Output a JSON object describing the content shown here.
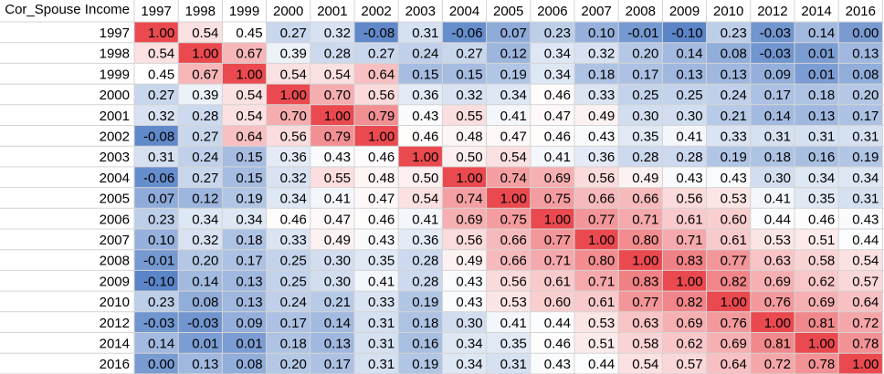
{
  "chart_data": {
    "type": "heatmap",
    "title": "Cor_Spouse Income",
    "labels": [
      "1997",
      "1998",
      "1999",
      "2000",
      "2001",
      "2002",
      "2003",
      "2004",
      "2005",
      "2006",
      "2007",
      "2008",
      "2009",
      "2010",
      "2012",
      "2014",
      "2016"
    ],
    "values": [
      [
        1.0,
        0.54,
        0.45,
        0.27,
        0.32,
        -0.08,
        0.31,
        -0.06,
        0.07,
        0.23,
        0.1,
        -0.01,
        -0.1,
        0.23,
        -0.03,
        0.14,
        0.0
      ],
      [
        0.54,
        1.0,
        0.67,
        0.39,
        0.28,
        0.27,
        0.24,
        0.27,
        0.12,
        0.34,
        0.32,
        0.2,
        0.14,
        0.08,
        -0.03,
        0.01,
        0.13
      ],
      [
        0.45,
        0.67,
        1.0,
        0.54,
        0.54,
        0.64,
        0.15,
        0.15,
        0.19,
        0.34,
        0.18,
        0.17,
        0.13,
        0.13,
        0.09,
        0.01,
        0.08
      ],
      [
        0.27,
        0.39,
        0.54,
        1.0,
        0.7,
        0.56,
        0.36,
        0.32,
        0.34,
        0.46,
        0.33,
        0.25,
        0.25,
        0.24,
        0.17,
        0.18,
        0.2
      ],
      [
        0.32,
        0.28,
        0.54,
        0.7,
        1.0,
        0.79,
        0.43,
        0.55,
        0.41,
        0.47,
        0.49,
        0.3,
        0.3,
        0.21,
        0.14,
        0.13,
        0.17
      ],
      [
        -0.08,
        0.27,
        0.64,
        0.56,
        0.79,
        1.0,
        0.46,
        0.48,
        0.47,
        0.46,
        0.43,
        0.35,
        0.41,
        0.33,
        0.31,
        0.31,
        0.31
      ],
      [
        0.31,
        0.24,
        0.15,
        0.36,
        0.43,
        0.46,
        1.0,
        0.5,
        0.54,
        0.41,
        0.36,
        0.28,
        0.28,
        0.19,
        0.18,
        0.16,
        0.19
      ],
      [
        -0.06,
        0.27,
        0.15,
        0.32,
        0.55,
        0.48,
        0.5,
        1.0,
        0.74,
        0.69,
        0.56,
        0.49,
        0.43,
        0.43,
        0.3,
        0.34,
        0.34
      ],
      [
        0.07,
        0.12,
        0.19,
        0.34,
        0.41,
        0.47,
        0.54,
        0.74,
        1.0,
        0.75,
        0.66,
        0.66,
        0.56,
        0.53,
        0.41,
        0.35,
        0.31
      ],
      [
        0.23,
        0.34,
        0.34,
        0.46,
        0.47,
        0.46,
        0.41,
        0.69,
        0.75,
        1.0,
        0.77,
        0.71,
        0.61,
        0.6,
        0.44,
        0.46,
        0.43
      ],
      [
        0.1,
        0.32,
        0.18,
        0.33,
        0.49,
        0.43,
        0.36,
        0.56,
        0.66,
        0.77,
        1.0,
        0.8,
        0.71,
        0.61,
        0.53,
        0.51,
        0.44
      ],
      [
        -0.01,
        0.2,
        0.17,
        0.25,
        0.3,
        0.35,
        0.28,
        0.49,
        0.66,
        0.71,
        0.8,
        1.0,
        0.83,
        0.77,
        0.63,
        0.58,
        0.54
      ],
      [
        -0.1,
        0.14,
        0.13,
        0.25,
        0.3,
        0.41,
        0.28,
        0.43,
        0.56,
        0.61,
        0.71,
        0.83,
        1.0,
        0.82,
        0.69,
        0.62,
        0.57
      ],
      [
        0.23,
        0.08,
        0.13,
        0.24,
        0.21,
        0.33,
        0.19,
        0.43,
        0.53,
        0.6,
        0.61,
        0.77,
        0.82,
        1.0,
        0.76,
        0.69,
        0.64
      ],
      [
        -0.03,
        -0.03,
        0.09,
        0.17,
        0.14,
        0.31,
        0.18,
        0.3,
        0.41,
        0.44,
        0.53,
        0.63,
        0.69,
        0.76,
        1.0,
        0.81,
        0.72
      ],
      [
        0.14,
        0.01,
        0.01,
        0.18,
        0.13,
        0.31,
        0.16,
        0.34,
        0.35,
        0.46,
        0.51,
        0.58,
        0.62,
        0.69,
        0.81,
        1.0,
        0.78
      ],
      [
        0.0,
        0.13,
        0.08,
        0.2,
        0.17,
        0.31,
        0.19,
        0.34,
        0.31,
        0.43,
        0.44,
        0.54,
        0.57,
        0.64,
        0.72,
        0.78,
        1.0
      ]
    ],
    "color_scale": {
      "low": "#5b85c8",
      "mid": "#ffffff",
      "high": "#ea4a4f"
    },
    "grid": true
  }
}
